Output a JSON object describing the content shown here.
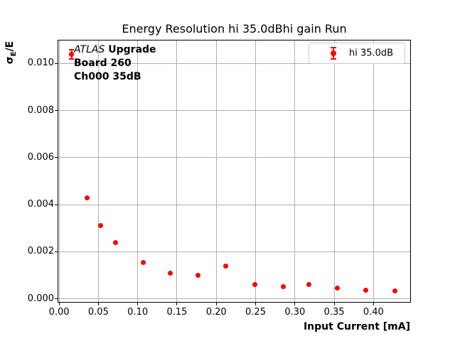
{
  "title": "Energy Resolution hi 35.0dBhi gain Run",
  "axes": {
    "xlabel": "Input Current [mA]",
    "ylabel_sigma": "σ",
    "ylabel_sub": "E",
    "ylabel_rest": "/E"
  },
  "annotation": {
    "experiment": "ATLAS",
    "label": " Upgrade",
    "board": "Board 260",
    "channel": "Ch000 35dB"
  },
  "legend": {
    "label": "hi 35.0dB"
  },
  "colors": {
    "series": "#ff0000",
    "grid": "#b0b0b0",
    "spine": "#000000",
    "legend_border": "#cccccc"
  },
  "chart_data": {
    "type": "scatter",
    "title": "Energy Resolution hi 35.0dBhi gain Run",
    "xlabel": "Input Current [mA]",
    "ylabel": "σ_E/E",
    "grid": true,
    "legend_position": "upper right",
    "xlim": [
      -0.001,
      0.4467
    ],
    "ylim": [
      -0.000135,
      0.01098
    ],
    "xticks": [
      0.0,
      0.05,
      0.1,
      0.15,
      0.2,
      0.25,
      0.3,
      0.35,
      0.4
    ],
    "xtick_labels": [
      "0.00",
      "0.05",
      "0.10",
      "0.15",
      "0.20",
      "0.25",
      "0.30",
      "0.35",
      "0.40"
    ],
    "yticks": [
      0.0,
      0.002,
      0.004,
      0.006,
      0.008,
      0.01
    ],
    "ytick_labels": [
      "0.000",
      "0.002",
      "0.004",
      "0.006",
      "0.008",
      "0.010"
    ],
    "series": [
      {
        "name": "hi 35.0dB",
        "color": "#ff0000",
        "points": [
          {
            "x": 0.016,
            "y": 0.0104,
            "yerr": 0.0002
          },
          {
            "x": 0.036,
            "y": 0.0043,
            "yerr": 0
          },
          {
            "x": 0.053,
            "y": 0.0031,
            "yerr": 0
          },
          {
            "x": 0.072,
            "y": 0.0024,
            "yerr": 0
          },
          {
            "x": 0.107,
            "y": 0.00155,
            "yerr": 0
          },
          {
            "x": 0.141,
            "y": 0.0011,
            "yerr": 0
          },
          {
            "x": 0.177,
            "y": 0.001,
            "yerr": 0
          },
          {
            "x": 0.212,
            "y": 0.0014,
            "yerr": 0
          },
          {
            "x": 0.249,
            "y": 0.0006,
            "yerr": 0
          },
          {
            "x": 0.285,
            "y": 0.0005,
            "yerr": 0
          },
          {
            "x": 0.318,
            "y": 0.0006,
            "yerr": 0
          },
          {
            "x": 0.354,
            "y": 0.00045,
            "yerr": 0
          },
          {
            "x": 0.39,
            "y": 0.00035,
            "yerr": 0
          },
          {
            "x": 0.427,
            "y": 0.00033,
            "yerr": 0
          }
        ]
      }
    ]
  }
}
